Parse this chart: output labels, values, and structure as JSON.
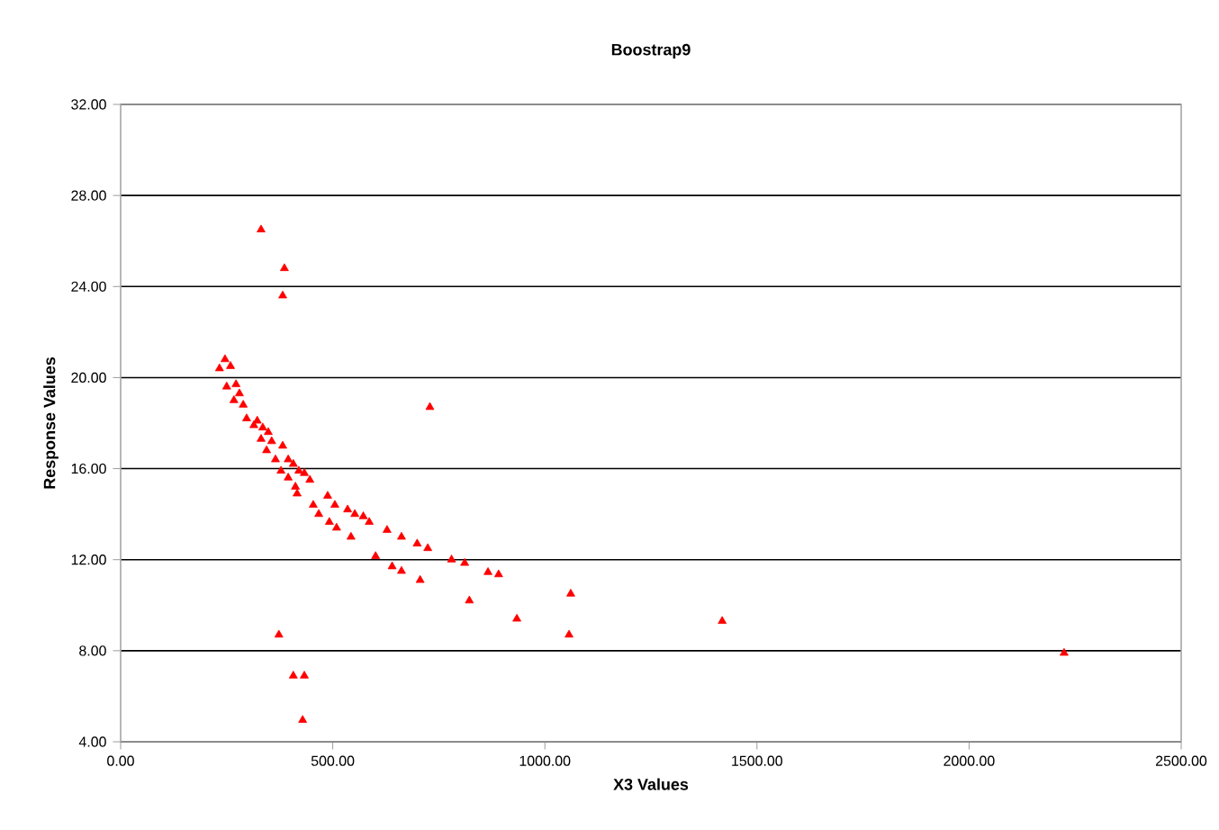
{
  "chart_data": {
    "type": "scatter",
    "title": "Boostrap9",
    "xlabel": "X3 Values",
    "ylabel": "Response Values",
    "marker": "triangle",
    "grid": "y",
    "xlim": [
      0,
      2500
    ],
    "ylim": [
      4,
      32
    ],
    "xticks": [
      {
        "value": 0,
        "label": "0.00"
      },
      {
        "value": 500,
        "label": "500.00"
      },
      {
        "value": 1000,
        "label": "1000.00"
      },
      {
        "value": 1500,
        "label": "1500.00"
      },
      {
        "value": 2000,
        "label": "2000.00"
      },
      {
        "value": 2500,
        "label": "2500.00"
      }
    ],
    "yticks": [
      {
        "value": 4,
        "label": "4.00"
      },
      {
        "value": 8,
        "label": "8.00"
      },
      {
        "value": 12,
        "label": "12.00"
      },
      {
        "value": 16,
        "label": "16.00"
      },
      {
        "value": 20,
        "label": "20.00"
      },
      {
        "value": 24,
        "label": "24.00"
      },
      {
        "value": 28,
        "label": "28.00"
      },
      {
        "value": 32,
        "label": "32.00"
      }
    ],
    "series": [
      {
        "color": "#ff0000",
        "x": [
          331,
          386,
          382,
          373,
          407,
          433,
          429,
          233,
          246,
          259,
          250,
          272,
          280,
          267,
          289,
          297,
          314,
          322,
          335,
          348,
          356,
          331,
          344,
          365,
          382,
          395,
          407,
          420,
          378,
          395,
          412,
          433,
          446,
          416,
          454,
          467,
          488,
          505,
          492,
          509,
          535,
          552,
          543,
          729,
          572,
          586,
          628,
          662,
          699,
          724,
          601,
          640,
          662,
          706,
          780,
          811,
          866,
          891,
          822,
          934,
          1061,
          1057,
          1418,
          2224
        ],
        "values": [
          26.5,
          24.8,
          23.6,
          8.7,
          6.9,
          6.9,
          4.95,
          20.4,
          20.8,
          20.5,
          19.6,
          19.7,
          19.3,
          19.0,
          18.8,
          18.2,
          17.9,
          18.1,
          17.8,
          17.6,
          17.2,
          17.3,
          16.8,
          16.4,
          17.0,
          16.4,
          16.2,
          15.9,
          15.9,
          15.6,
          15.2,
          15.8,
          15.5,
          14.9,
          14.4,
          14.0,
          14.8,
          14.4,
          13.65,
          13.4,
          14.2,
          14.0,
          13.0,
          18.7,
          13.9,
          13.65,
          13.3,
          13.0,
          12.7,
          12.5,
          12.15,
          11.7,
          11.5,
          11.1,
          12.0,
          11.85,
          11.45,
          11.35,
          10.2,
          9.4,
          10.5,
          8.7,
          9.3,
          7.9
        ]
      }
    ]
  }
}
